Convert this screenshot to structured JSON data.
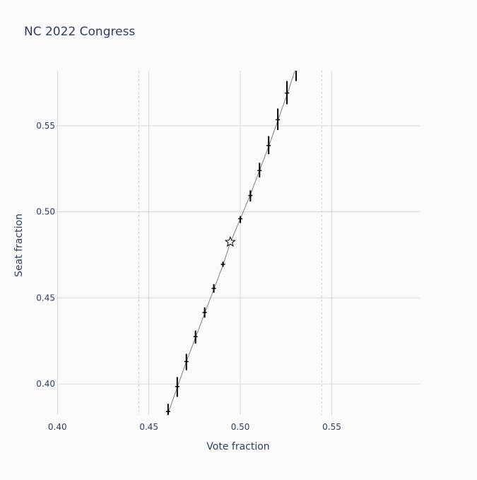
{
  "chart_data": {
    "type": "scatter",
    "title": "NC 2022 Congress",
    "xlabel": "Vote fraction",
    "ylabel": "Seat fraction",
    "xlim": [
      0.3995,
      0.5985
    ],
    "ylim": [
      0.382,
      0.582
    ],
    "xticks": [
      0.4,
      0.45,
      0.5,
      0.55
    ],
    "xtick_labels": [
      "0.40",
      "0.45",
      "0.50",
      "0.55"
    ],
    "yticks": [
      0.4,
      0.45,
      0.5,
      0.55
    ],
    "ytick_labels": [
      "0.40",
      "0.45",
      "0.50",
      "0.55"
    ],
    "grid": true,
    "reference_lines_x": [
      0.4445,
      0.5445
    ],
    "curve": {
      "x": [
        0.456,
        0.4605,
        0.4655,
        0.4705,
        0.4755,
        0.4805,
        0.4855,
        0.4905,
        0.4945,
        0.5,
        0.5055,
        0.5105,
        0.5155,
        0.5205,
        0.5255,
        0.5305
      ],
      "y": [
        0.37,
        0.383,
        0.398,
        0.413,
        0.427,
        0.441,
        0.455,
        0.469,
        0.482,
        0.496,
        0.51,
        0.524,
        0.538,
        0.553,
        0.568,
        0.584
      ]
    },
    "points": {
      "x": [
        0.4605,
        0.4655,
        0.4705,
        0.4755,
        0.4805,
        0.4855,
        0.4905,
        0.5,
        0.5055,
        0.5105,
        0.5155,
        0.5205,
        0.5255,
        0.5305
      ],
      "y": [
        0.384,
        0.3985,
        0.413,
        0.4275,
        0.4415,
        0.4555,
        0.4695,
        0.496,
        0.5095,
        0.524,
        0.5385,
        0.5535,
        0.569,
        0.583
      ],
      "err_low": [
        0.0025,
        0.006,
        0.005,
        0.004,
        0.003,
        0.0025,
        0.0015,
        0.0025,
        0.0035,
        0.004,
        0.005,
        0.006,
        0.0065,
        0.007
      ],
      "err_high": [
        0.0045,
        0.0055,
        0.0045,
        0.0035,
        0.003,
        0.0025,
        0.0015,
        0.0015,
        0.003,
        0.0045,
        0.0055,
        0.0065,
        0.007,
        0.007
      ]
    },
    "marker": {
      "x": 0.4945,
      "y": 0.4825,
      "symbol": "star-open"
    },
    "colors": {
      "background": "#fafafa",
      "grid": "#dadada",
      "curve": "#7f7f7f",
      "points": "#000000",
      "text": "#2a3f5f"
    }
  }
}
